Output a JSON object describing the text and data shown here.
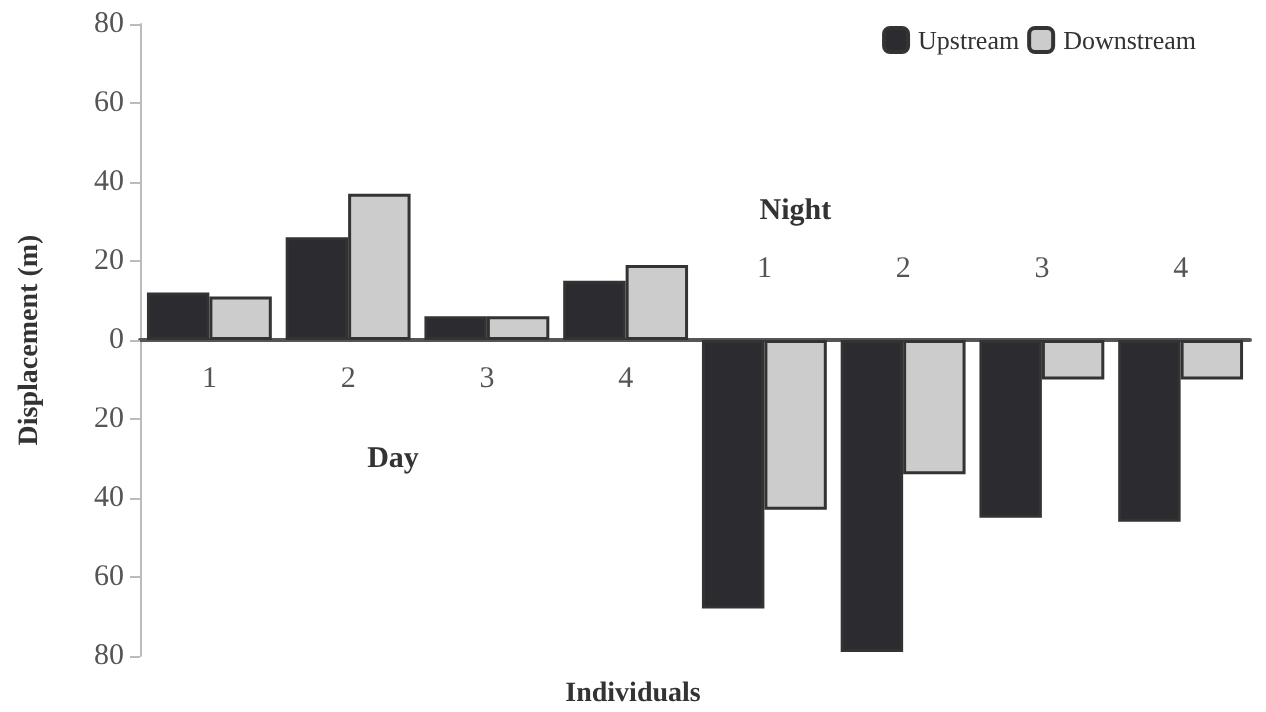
{
  "chart_data": {
    "type": "bar",
    "ylabel": "Displacement (m)",
    "xlabel": "Individuals",
    "categories": [
      "1",
      "2",
      "3",
      "4",
      "1",
      "2",
      "3",
      "4"
    ],
    "series": [
      {
        "name": "Upstream",
        "color": "#2b2b30",
        "values": [
          12,
          26,
          6,
          15,
          -68,
          -79,
          -45,
          -46
        ]
      },
      {
        "name": "Downstream",
        "color": "#cccccc",
        "values": [
          11,
          37,
          6,
          19,
          -43,
          -34,
          -10,
          -10
        ]
      }
    ],
    "ylim": [
      -80,
      80
    ],
    "yticks": [
      {
        "value": -80,
        "label": "80"
      },
      {
        "value": -60,
        "label": "60"
      },
      {
        "value": -40,
        "label": "40"
      },
      {
        "value": -20,
        "label": "20"
      },
      0,
      20,
      40,
      60,
      80
    ],
    "annotations": [
      "Day",
      "Night"
    ],
    "legend": "top right",
    "grid": false
  }
}
